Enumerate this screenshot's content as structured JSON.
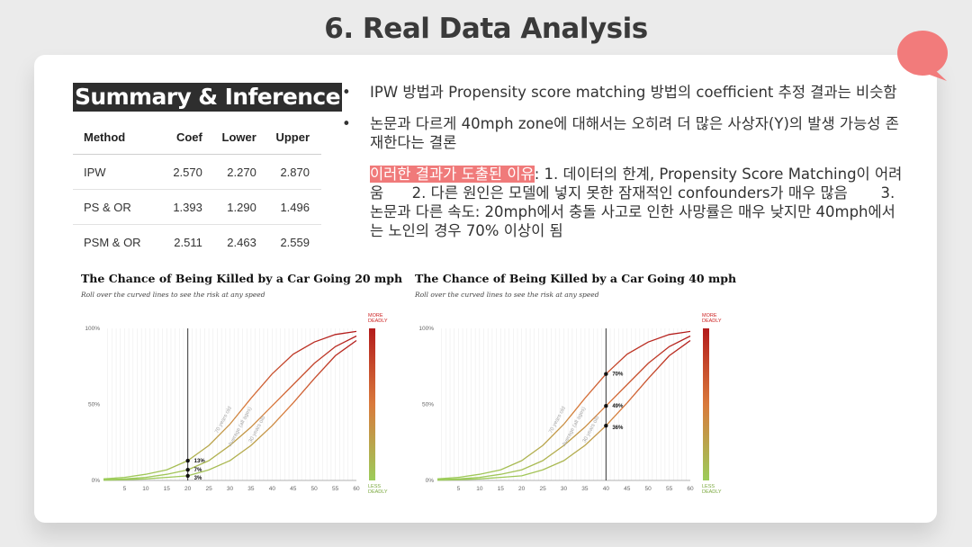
{
  "slide": {
    "title": "6. Real Data Analysis"
  },
  "summary": {
    "heading": "Summary & Inference",
    "columns": [
      "Method",
      "Coef",
      "Lower",
      "Upper"
    ],
    "rows": [
      [
        "IPW",
        "2.570",
        "2.270",
        "2.870"
      ],
      [
        "PS & OR",
        "1.393",
        "1.290",
        "1.496"
      ],
      [
        "PSM & OR",
        "2.511",
        "2.463",
        "2.559"
      ]
    ]
  },
  "bullets": [
    {
      "text": "IPW 방법과 Propensity score matching 방법의 coefficient 추정 결과는 비슷함"
    },
    {
      "text": "논문과 다르게 40mph zone에 대해서는 오히려 더 많은 사상자(Y)의 발생 가능성 존재한다는 결론"
    }
  ],
  "note": {
    "highlight": "이러한 결과가 도출된 이유",
    "text": ": 1. 데이터의 한계, Propensity Score Matching이 어려움      2. 다른 원인은 모델에 넣지 못한 잠재적인 confounders가 매우 많음       3. 논문과 다른 속도: 20mph에서 충돌 사고로 인한 사망률은 매우 낮지만 40mph에서는 노인의 경우 70% 이상이 됨"
  },
  "colors": {
    "accent": "#f07a7a",
    "dark": "#2e2e2e"
  },
  "chart_data": [
    {
      "type": "line",
      "title": "The Chance of Being Killed by a Car Going 20 mph",
      "subtitle": "Roll over the curved lines to see the risk at any speed",
      "xlim": [
        0,
        60
      ],
      "ylim": [
        0,
        100
      ],
      "x_ticks": [
        5,
        10,
        15,
        20,
        25,
        30,
        35,
        40,
        45,
        50,
        55,
        60
      ],
      "y_ticks": [
        "0%",
        "50%",
        "100%"
      ],
      "highlight_x": 20,
      "series": [
        {
          "name": "70 years old",
          "x": [
            0,
            5,
            10,
            15,
            20,
            25,
            30,
            35,
            40,
            45,
            50,
            55,
            60
          ],
          "y": [
            1,
            2,
            4,
            7,
            13,
            23,
            37,
            54,
            70,
            83,
            91,
            96,
            98
          ]
        },
        {
          "name": "Average (all ages)",
          "x": [
            0,
            5,
            10,
            15,
            20,
            25,
            30,
            35,
            40,
            45,
            50,
            55,
            60
          ],
          "y": [
            0.5,
            1,
            2,
            4,
            7,
            13,
            23,
            35,
            49,
            63,
            77,
            88,
            95
          ]
        },
        {
          "name": "30 years old",
          "x": [
            0,
            5,
            10,
            15,
            20,
            25,
            30,
            35,
            40,
            45,
            50,
            55,
            60
          ],
          "y": [
            0.2,
            0.5,
            1,
            2,
            3,
            7,
            13,
            23,
            36,
            51,
            67,
            82,
            92
          ]
        }
      ],
      "point_labels": [
        "13%",
        "7%",
        "3%"
      ],
      "scale_top": "MORE DEADLY",
      "scale_bottom": "LESS DEADLY"
    },
    {
      "type": "line",
      "title": "The Chance of Being Killed by a Car Going 40 mph",
      "subtitle": "Roll over the curved lines to see the risk at any speed",
      "xlim": [
        0,
        60
      ],
      "ylim": [
        0,
        100
      ],
      "x_ticks": [
        5,
        10,
        15,
        20,
        25,
        30,
        35,
        40,
        45,
        50,
        55,
        60
      ],
      "y_ticks": [
        "0%",
        "50%",
        "100%"
      ],
      "highlight_x": 40,
      "series": [
        {
          "name": "70 years old",
          "x": [
            0,
            5,
            10,
            15,
            20,
            25,
            30,
            35,
            40,
            45,
            50,
            55,
            60
          ],
          "y": [
            1,
            2,
            4,
            7,
            13,
            23,
            37,
            54,
            70,
            83,
            91,
            96,
            98
          ]
        },
        {
          "name": "Average (all ages)",
          "x": [
            0,
            5,
            10,
            15,
            20,
            25,
            30,
            35,
            40,
            45,
            50,
            55,
            60
          ],
          "y": [
            0.5,
            1,
            2,
            4,
            7,
            13,
            23,
            35,
            49,
            63,
            77,
            88,
            95
          ]
        },
        {
          "name": "30 years old",
          "x": [
            0,
            5,
            10,
            15,
            20,
            25,
            30,
            35,
            40,
            45,
            50,
            55,
            60
          ],
          "y": [
            0.2,
            0.5,
            1,
            2,
            3,
            7,
            13,
            23,
            36,
            51,
            67,
            82,
            92
          ]
        }
      ],
      "point_labels": [
        "70%",
        "49%",
        "36%"
      ],
      "scale_top": "MORE DEADLY",
      "scale_bottom": "LESS DEADLY"
    }
  ]
}
